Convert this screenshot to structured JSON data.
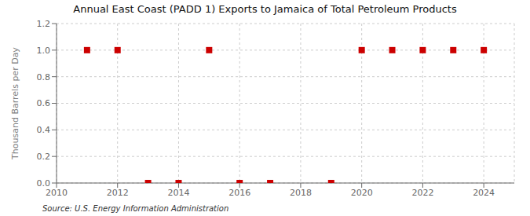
{
  "chart_data": {
    "type": "scatter",
    "title": "Annual East Coast (PADD 1) Exports to Jamaica of Total Petroleum Products",
    "ylabel": "Thousand Barrels per Day",
    "source": "Source: U.S. Energy Information Administration",
    "x": [
      2011,
      2012,
      2013,
      2014,
      2015,
      2016,
      2017,
      2019,
      2020,
      2021,
      2022,
      2023,
      2024
    ],
    "values": [
      1.0,
      1.0,
      0.0,
      0.0,
      1.0,
      0.0,
      0.0,
      0.0,
      1.0,
      1.0,
      1.0,
      1.0,
      1.0
    ],
    "color": "#cc0000",
    "marker": "square",
    "xlim": [
      2010,
      2025
    ],
    "ylim": [
      0.0,
      1.2
    ],
    "xticks": [
      2010,
      2012,
      2014,
      2016,
      2018,
      2020,
      2022,
      2024
    ],
    "yticks": [
      {
        "value": 0,
        "label": "0.0"
      },
      0.2,
      0.4,
      0.6,
      0.8,
      {
        "value": 1,
        "label": "1.0"
      },
      1.2
    ],
    "grid": true
  }
}
